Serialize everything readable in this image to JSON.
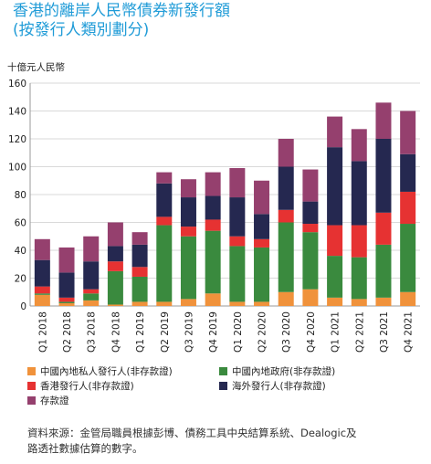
{
  "title_lines": [
    "香港的離岸人民幣債券新發行額",
    "(按發行人類別劃分)"
  ],
  "source_lines": [
    "資料來源：金管局職員根據彭博、債務工具中央結算系統、Dealogic及",
    "路透社數據估算的數字。"
  ],
  "chart_data": {
    "type": "bar",
    "stacked": true,
    "ylabel": "十億元人民幣",
    "ylim": [
      0,
      160
    ],
    "yticks": [
      0,
      20,
      40,
      60,
      80,
      100,
      120,
      140,
      160
    ],
    "grid": true,
    "legend_position": "bottom",
    "categories": [
      "Q1 2018",
      "Q2 2018",
      "Q3 2018",
      "Q4 2018",
      "Q1 2019",
      "Q2 2019",
      "Q3 2019",
      "Q4 2019",
      "Q1 2020",
      "Q2 2020",
      "Q3 2020",
      "Q4 2020",
      "Q1 2021",
      "Q2 2021",
      "Q3 2021",
      "Q4 2021"
    ],
    "series": [
      {
        "name": "中國內地私人發行人(非存款證)",
        "color": "#f0923b",
        "values": [
          8,
          2,
          4,
          1,
          3,
          3,
          5,
          9,
          3,
          3,
          10,
          12,
          6,
          5,
          6,
          10
        ]
      },
      {
        "name": "中國內地政府(非存款證)",
        "color": "#3a8a3e",
        "values": [
          1,
          1,
          5,
          24,
          18,
          55,
          45,
          45,
          40,
          39,
          50,
          41,
          30,
          30,
          38,
          49
        ]
      },
      {
        "name": "香港發行人(非存款證)",
        "color": "#e63232",
        "values": [
          5,
          3,
          3,
          7,
          7,
          6,
          7,
          8,
          7,
          6,
          9,
          6,
          22,
          23,
          23,
          23
        ]
      },
      {
        "name": "海外發行人(非存款證)",
        "color": "#252850",
        "values": [
          19,
          18,
          20,
          11,
          16,
          24,
          21,
          17,
          28,
          18,
          31,
          16,
          56,
          46,
          53,
          27
        ]
      },
      {
        "name": "存款證",
        "color": "#95406e",
        "values": [
          15,
          18,
          18,
          17,
          9,
          8,
          13,
          17,
          21,
          24,
          20,
          23,
          22,
          23,
          26,
          31
        ]
      }
    ]
  }
}
